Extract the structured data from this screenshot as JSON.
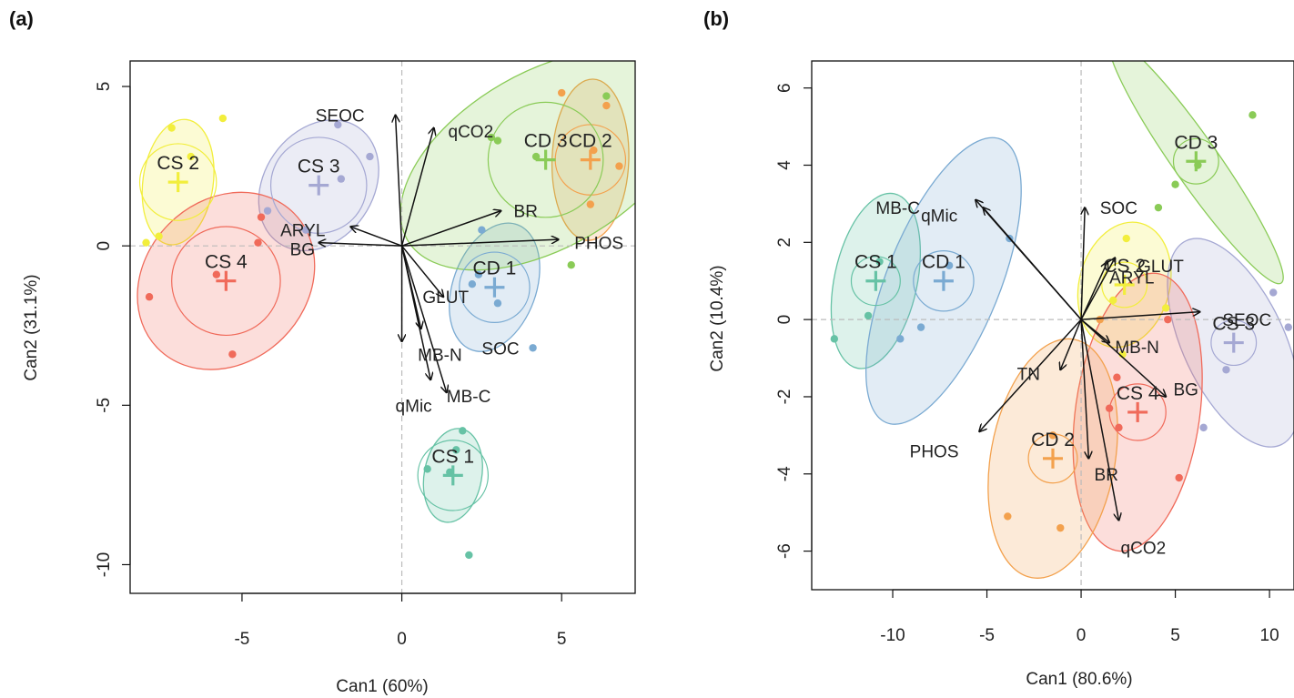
{
  "chart_data": [
    {
      "panel": "(a)",
      "type": "scatter",
      "xlabel": "Can1 (60%)",
      "ylabel": "Can2 (31.1%)",
      "xlim": [
        -8.5,
        7.3
      ],
      "ylim": [
        -10.9,
        5.8
      ],
      "xticks": [
        -5,
        0,
        5
      ],
      "yticks": [
        -10,
        -5,
        0,
        5
      ],
      "reference_lines": "dashed at x=0 and y=0",
      "groups": [
        {
          "name": "CS 1",
          "color": "#66C2A5",
          "centroid": [
            1.6,
            -7.2
          ],
          "rx": 0.9,
          "ry": 2.7,
          "angle": 80,
          "ci_r": 1.1,
          "points": [
            [
              0.8,
              -7.0
            ],
            [
              1.7,
              -6.4
            ],
            [
              1.9,
              -5.8
            ],
            [
              2.1,
              -9.7
            ],
            [
              1.5,
              -7.1
            ]
          ]
        },
        {
          "name": "CS 2",
          "color": "#F2EE3C",
          "centroid": [
            -7.0,
            2.0
          ],
          "rx": 1.1,
          "ry": 3.6,
          "angle": 82,
          "ci_r": 1.2,
          "points": [
            [
              -7.2,
              3.7
            ],
            [
              -5.6,
              4.0
            ],
            [
              -7.6,
              0.3
            ],
            [
              -8.0,
              0.1
            ],
            [
              -6.6,
              2.8
            ]
          ]
        },
        {
          "name": "CS 3",
          "color": "#A5A8D3",
          "centroid": [
            -2.6,
            1.9
          ],
          "rx": 1.7,
          "ry": 4.0,
          "angle": 55,
          "ci_r": 1.5,
          "points": [
            [
              -2.0,
              3.8
            ],
            [
              -1.0,
              2.8
            ],
            [
              -4.2,
              1.1
            ],
            [
              -3.0,
              0.5
            ],
            [
              -1.9,
              2.1
            ]
          ]
        },
        {
          "name": "CS 4",
          "color": "#F06A5A",
          "centroid": [
            -5.5,
            -1.1
          ],
          "rx": 3.0,
          "ry": 4.6,
          "angle": 45,
          "ci_r": 1.7,
          "points": [
            [
              -7.9,
              -1.6
            ],
            [
              -4.4,
              0.9
            ],
            [
              -4.5,
              0.1
            ],
            [
              -5.3,
              -3.4
            ],
            [
              -5.8,
              -0.9
            ]
          ]
        },
        {
          "name": "CD 1",
          "color": "#7AAAD2",
          "centroid": [
            2.9,
            -1.3
          ],
          "rx": 1.3,
          "ry": 3.8,
          "angle": 70,
          "ci_r": 1.1,
          "points": [
            [
              2.5,
              0.5
            ],
            [
              2.4,
              -0.9
            ],
            [
              4.1,
              -3.2
            ],
            [
              3.0,
              -1.8
            ],
            [
              2.2,
              -1.2
            ]
          ]
        },
        {
          "name": "CD 2",
          "color": "#F3A14D",
          "centroid": [
            5.9,
            2.7
          ],
          "rx": 1.2,
          "ry": 4.6,
          "angle": 88,
          "ci_r": 1.1,
          "points": [
            [
              5.0,
              4.8
            ],
            [
              6.8,
              2.5
            ],
            [
              6.4,
              4.4
            ],
            [
              5.9,
              1.3
            ],
            [
              6.0,
              3.0
            ]
          ]
        },
        {
          "name": "CD 3",
          "color": "#8ACB57",
          "centroid": [
            4.5,
            2.7
          ],
          "rx": 5.0,
          "ry": 5.0,
          "angle": 30,
          "ci_r": 1.8,
          "points": [
            [
              3.0,
              3.3
            ],
            [
              6.4,
              4.7
            ],
            [
              5.3,
              -0.6
            ],
            [
              4.2,
              2.8
            ],
            [
              2.8,
              3.4
            ]
          ]
        }
      ],
      "vectors": [
        {
          "label": "SEOC",
          "end": [
            -0.2,
            4.1
          ],
          "label_at": [
            -2.7,
            4.1
          ],
          "anchor": "start"
        },
        {
          "label": "qCO2",
          "end": [
            1.0,
            3.7
          ],
          "label_at": [
            1.45,
            3.6
          ],
          "anchor": "start"
        },
        {
          "label": "BR",
          "end": [
            3.1,
            1.1
          ],
          "label_at": [
            3.5,
            1.1
          ],
          "anchor": "start"
        },
        {
          "label": "PHOS",
          "end": [
            4.9,
            0.2
          ],
          "label_at": [
            5.4,
            0.1
          ],
          "anchor": "start"
        },
        {
          "label": "ARYL",
          "end": [
            -1.6,
            0.6
          ],
          "label_at": [
            -3.8,
            0.5
          ],
          "anchor": "start"
        },
        {
          "label": "BG",
          "end": [
            -2.6,
            0.1
          ],
          "label_at": [
            -3.5,
            -0.1
          ],
          "anchor": "start"
        },
        {
          "label": "GLUT",
          "end": [
            1.3,
            -1.6
          ],
          "label_at": [
            0.65,
            -1.6
          ],
          "anchor": "start"
        },
        {
          "label": "MB-N",
          "end": [
            0.0,
            -3.0
          ],
          "label_at": [
            0.5,
            -3.4
          ],
          "anchor": "start"
        },
        {
          "label": "SOC",
          "end": [
            0.6,
            -2.6
          ],
          "label_at": [
            2.5,
            -3.2
          ],
          "anchor": "start"
        },
        {
          "label": "qMic",
          "end": [
            0.9,
            -4.2
          ],
          "label_at": [
            -0.2,
            -5.0
          ],
          "anchor": "start"
        },
        {
          "label": "MB-C",
          "end": [
            1.4,
            -4.6
          ],
          "label_at": [
            1.4,
            -4.7
          ],
          "anchor": "start"
        }
      ]
    },
    {
      "panel": "(b)",
      "type": "scatter",
      "xlabel": "Can1 (80.6%)",
      "ylabel": "Can2 (10.4%)",
      "xlim": [
        -14.3,
        11.3
      ],
      "ylim": [
        -7.0,
        6.7
      ],
      "xticks": [
        -10,
        -5,
        0,
        5,
        10
      ],
      "yticks": [
        -6,
        -4,
        -2,
        0,
        2,
        4,
        6
      ],
      "reference_lines": "dashed at x=0 and y=0",
      "groups": [
        {
          "name": "CS 1",
          "color": "#66C2A5",
          "centroid": [
            -10.9,
            1.0
          ],
          "rx": 2.2,
          "ry": 4.2,
          "angle": 78,
          "ci_r": 1.3,
          "points": [
            [
              -13.1,
              -0.5
            ],
            [
              -11.3,
              0.1
            ],
            [
              -10.7,
              1.5
            ]
          ]
        },
        {
          "name": "CS 2",
          "color": "#F2EE3C",
          "centroid": [
            2.3,
            0.9
          ],
          "rx": 2.4,
          "ry": 3.0,
          "angle": 75,
          "ci_r": 1.2,
          "points": [
            [
              2.4,
              2.1
            ],
            [
              4.5,
              0.3
            ],
            [
              1.7,
              0.5
            ],
            [
              2.2,
              -0.9
            ]
          ]
        },
        {
          "name": "CS 3",
          "color": "#A5A8D3",
          "centroid": [
            8.1,
            -0.6
          ],
          "rx": 2.7,
          "ry": 5.3,
          "angle": -65,
          "ci_r": 1.2,
          "points": [
            [
              10.2,
              0.7
            ],
            [
              6.5,
              -2.8
            ],
            [
              7.7,
              -1.3
            ],
            [
              11.0,
              -0.2
            ]
          ]
        },
        {
          "name": "CS 4",
          "color": "#F06A5A",
          "centroid": [
            3.0,
            -2.4
          ],
          "rx": 3.3,
          "ry": 6.6,
          "angle": 82,
          "ci_r": 1.5,
          "points": [
            [
              1.5,
              -2.3
            ],
            [
              5.2,
              -4.1
            ],
            [
              4.6,
              0.0
            ],
            [
              2.0,
              -2.8
            ],
            [
              1.9,
              -1.5
            ]
          ]
        },
        {
          "name": "CD 1",
          "color": "#7AAAD2",
          "centroid": [
            -7.3,
            1.0
          ],
          "rx": 3.0,
          "ry": 7.2,
          "angle": 68,
          "ci_r": 1.6,
          "points": [
            [
              -9.6,
              -0.5
            ],
            [
              -8.5,
              -0.2
            ],
            [
              -3.8,
              2.1
            ],
            [
              -7.0,
              1.4
            ]
          ]
        },
        {
          "name": "CD 2",
          "color": "#F3A14D",
          "centroid": [
            -1.5,
            -3.6
          ],
          "rx": 3.3,
          "ry": 5.7,
          "angle": 80,
          "ci_r": 1.3,
          "points": [
            [
              -3.9,
              -5.1
            ],
            [
              -1.1,
              -5.4
            ],
            [
              1.0,
              0.0
            ],
            [
              -1.5,
              -3.0
            ]
          ]
        },
        {
          "name": "CD 3",
          "color": "#8ACB57",
          "centroid": [
            6.1,
            4.1
          ],
          "rx": 1.2,
          "ry": 7.0,
          "angle": -55,
          "ci_r": 1.2,
          "points": [
            [
              9.1,
              5.3
            ],
            [
              4.1,
              2.9
            ],
            [
              5.0,
              3.5
            ],
            [
              6.2,
              4.0
            ]
          ]
        }
      ],
      "vectors": [
        {
          "label": "MB-C",
          "end": [
            -5.2,
            2.9
          ],
          "label_at": [
            -10.9,
            2.9
          ],
          "anchor": "start"
        },
        {
          "label": "qMic",
          "end": [
            -5.6,
            3.1
          ],
          "label_at": [
            -8.5,
            2.7
          ],
          "anchor": "start"
        },
        {
          "label": "SOC",
          "end": [
            0.2,
            2.9
          ],
          "label_at": [
            1.0,
            2.9
          ],
          "anchor": "start"
        },
        {
          "label": "GLUT",
          "end": [
            1.8,
            1.6
          ],
          "label_at": [
            3.0,
            1.4
          ],
          "anchor": "start"
        },
        {
          "label": "ARYL",
          "end": [
            1.4,
            1.5
          ],
          "label_at": [
            1.5,
            1.1
          ],
          "anchor": "start"
        },
        {
          "label": "SEOC",
          "end": [
            6.3,
            0.2
          ],
          "label_at": [
            7.5,
            0.0
          ],
          "anchor": "start"
        },
        {
          "label": "MB-N",
          "end": [
            1.5,
            -0.6
          ],
          "label_at": [
            1.8,
            -0.7
          ],
          "anchor": "start"
        },
        {
          "label": "BG",
          "end": [
            4.5,
            -2.0
          ],
          "label_at": [
            4.9,
            -1.8
          ],
          "anchor": "start"
        },
        {
          "label": "TN",
          "end": [
            -1.1,
            -1.3
          ],
          "label_at": [
            -3.4,
            -1.4
          ],
          "anchor": "start"
        },
        {
          "label": "PHOS",
          "end": [
            -5.4,
            -2.9
          ],
          "label_at": [
            -9.1,
            -3.4
          ],
          "anchor": "start"
        },
        {
          "label": "BR",
          "end": [
            0.4,
            -3.6
          ],
          "label_at": [
            0.7,
            -4.0
          ],
          "anchor": "start"
        },
        {
          "label": "qCO2",
          "end": [
            2.0,
            -5.2
          ],
          "label_at": [
            2.1,
            -5.9
          ],
          "anchor": "start"
        }
      ]
    }
  ]
}
